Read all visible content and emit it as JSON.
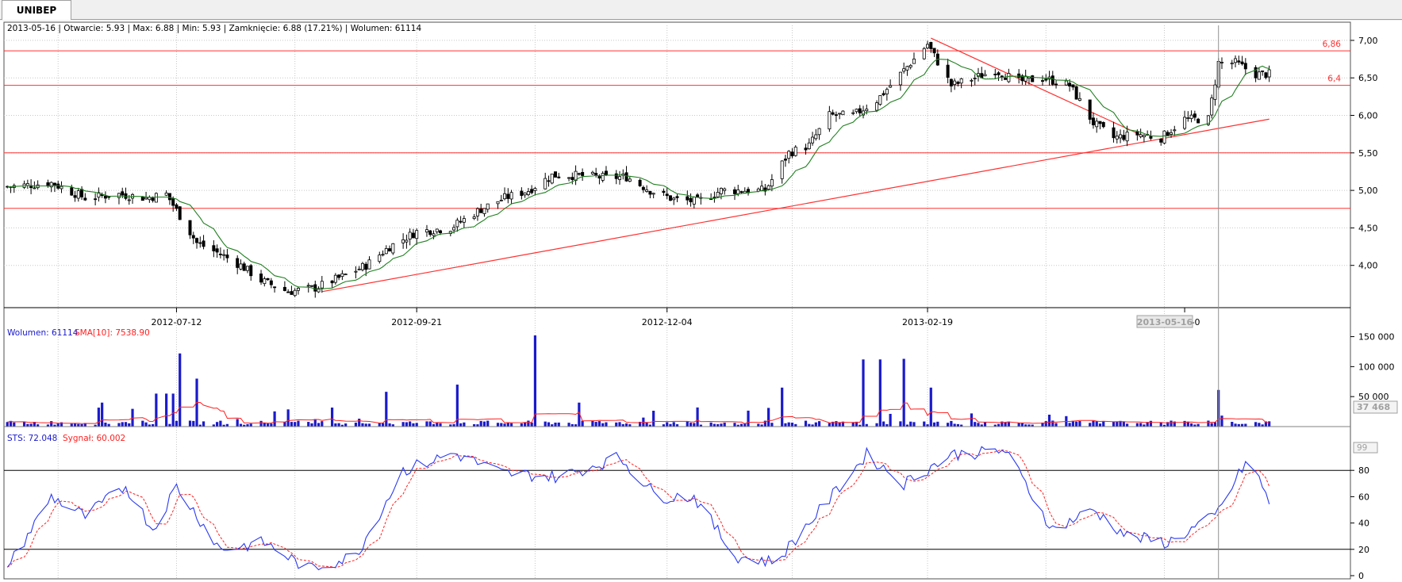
{
  "tab": {
    "label": "UNIBEP"
  },
  "info": {
    "price_line": "2013-05-16 | Otwarcie: 5.93 | Max: 6.88 | Min: 5.93 | Zamknięcie: 6.88 (17.21%)  | Wolumen: 61114"
  },
  "volume_legend": {
    "vol": "Wolumen: 61114",
    "sma": "SMA[10]: 7538.90"
  },
  "sts_legend": {
    "sts": "STS: 72.048",
    "signal": "Sygnał: 60.002"
  },
  "crosshair": {
    "date_label": "2013-05-16",
    "volume_readout": "37 468",
    "sts_readout": "99"
  },
  "colors": {
    "up": "#ffffff",
    "down": "#000000",
    "sma": "#208020",
    "hline": "#ff3030",
    "volume": "#1a1acc",
    "volsma": "#ff2020",
    "sts": "#2a3af0",
    "signal": "#ff2020",
    "grid": "#c8c8c8"
  },
  "chart_data": [
    {
      "type": "candlestick",
      "ticker": "UNIBEP",
      "x_labels": [
        "2012-07-12",
        "2012-09-21",
        "2012-12-04",
        "2013-02-19",
        "2013-0"
      ],
      "y_ticks": [
        "7,00",
        "6,50",
        "6,00",
        "5,50",
        "5,00",
        "4,50",
        "4,00"
      ],
      "ylim": [
        3.5,
        7.2
      ],
      "horizontal_levels": [
        6.86,
        6.4,
        5.5,
        4.76
      ],
      "level_labels": [
        "6,86",
        "6,4"
      ],
      "trend_lines": [
        {
          "from": [
            "2012-08-24",
            3.65
          ],
          "to": [
            "2013-05-31",
            5.95
          ]
        },
        {
          "from": [
            "2013-02-20",
            7.03
          ],
          "to": [
            "2013-04-24",
            5.72
          ]
        }
      ],
      "overlays": [
        "SMA"
      ],
      "anchors": [
        {
          "x": "2012-05-24",
          "y": 5.05
        },
        {
          "x": "2012-06-05",
          "y": 5.1
        },
        {
          "x": "2012-06-15",
          "y": 4.9
        },
        {
          "x": "2012-06-25",
          "y": 4.95
        },
        {
          "x": "2012-07-03",
          "y": 4.9
        },
        {
          "x": "2012-07-09",
          "y": 4.95
        },
        {
          "x": "2012-07-18",
          "y": 4.3
        },
        {
          "x": "2012-07-25",
          "y": 4.15
        },
        {
          "x": "2012-07-31",
          "y": 4.0
        },
        {
          "x": "2012-08-06",
          "y": 3.8
        },
        {
          "x": "2012-08-14",
          "y": 3.65
        },
        {
          "x": "2012-08-22",
          "y": 3.7
        },
        {
          "x": "2012-08-30",
          "y": 3.85
        },
        {
          "x": "2012-09-06",
          "y": 4.0
        },
        {
          "x": "2012-09-13",
          "y": 4.25
        },
        {
          "x": "2012-09-21",
          "y": 4.45
        },
        {
          "x": "2012-10-01",
          "y": 4.5
        },
        {
          "x": "2012-10-10",
          "y": 4.75
        },
        {
          "x": "2012-10-17",
          "y": 4.9
        },
        {
          "x": "2012-10-24",
          "y": 5.0
        },
        {
          "x": "2012-10-31",
          "y": 5.2
        },
        {
          "x": "2012-11-08",
          "y": 5.2
        },
        {
          "x": "2012-11-16",
          "y": 5.17
        },
        {
          "x": "2012-11-22",
          "y": 5.18
        },
        {
          "x": "2012-11-29",
          "y": 5.0
        },
        {
          "x": "2012-12-06",
          "y": 4.88
        },
        {
          "x": "2012-12-13",
          "y": 4.85
        },
        {
          "x": "2012-12-20",
          "y": 5.0
        },
        {
          "x": "2013-01-02",
          "y": 5.0
        },
        {
          "x": "2013-01-09",
          "y": 5.5
        },
        {
          "x": "2013-01-15",
          "y": 5.6
        },
        {
          "x": "2013-01-21",
          "y": 6.0
        },
        {
          "x": "2013-01-28",
          "y": 6.0
        },
        {
          "x": "2013-02-04",
          "y": 6.2
        },
        {
          "x": "2013-02-12",
          "y": 6.6
        },
        {
          "x": "2013-02-19",
          "y": 6.95
        },
        {
          "x": "2013-02-26",
          "y": 6.4
        },
        {
          "x": "2013-03-05",
          "y": 6.5
        },
        {
          "x": "2013-03-11",
          "y": 6.6
        },
        {
          "x": "2013-03-18",
          "y": 6.45
        },
        {
          "x": "2013-03-25",
          "y": 6.5
        },
        {
          "x": "2013-04-02",
          "y": 6.4
        },
        {
          "x": "2013-04-09",
          "y": 5.9
        },
        {
          "x": "2013-04-15",
          "y": 5.7
        },
        {
          "x": "2013-04-22",
          "y": 5.75
        },
        {
          "x": "2013-04-29",
          "y": 5.7
        },
        {
          "x": "2013-05-06",
          "y": 5.95
        },
        {
          "x": "2013-05-13",
          "y": 5.95
        },
        {
          "x": "2013-05-16",
          "y": 6.7
        },
        {
          "x": "2013-05-21",
          "y": 6.7
        },
        {
          "x": "2013-05-27",
          "y": 6.55
        }
      ]
    },
    {
      "type": "bar",
      "series": [
        {
          "name": "Wolumen",
          "spikes": [
            {
              "x": "2012-07-06",
              "y": 55000
            },
            {
              "x": "2012-07-09",
              "y": 55000
            },
            {
              "x": "2012-07-11",
              "y": 55000
            },
            {
              "x": "2012-07-13",
              "y": 122000
            },
            {
              "x": "2012-07-18",
              "y": 80000
            },
            {
              "x": "2012-06-20",
              "y": 40000
            },
            {
              "x": "2012-09-12",
              "y": 58000
            },
            {
              "x": "2012-10-03",
              "y": 70000
            },
            {
              "x": "2012-10-26",
              "y": 152000
            },
            {
              "x": "2012-11-08",
              "y": 40000
            },
            {
              "x": "2013-01-07",
              "y": 65000
            },
            {
              "x": "2013-01-31",
              "y": 112000
            },
            {
              "x": "2013-02-05",
              "y": 112000
            },
            {
              "x": "2013-02-12",
              "y": 113000
            },
            {
              "x": "2013-02-20",
              "y": 65000
            },
            {
              "x": "2013-05-16",
              "y": 61114
            }
          ]
        },
        {
          "name": "SMA[10]"
        }
      ],
      "y_ticks": [
        "150 000",
        "100 000",
        "50 000"
      ],
      "ylim": [
        0,
        160000
      ]
    },
    {
      "type": "line",
      "series": [
        {
          "name": "STS"
        },
        {
          "name": "Sygnał"
        }
      ],
      "y_ticks": [
        "80",
        "60",
        "40",
        "20",
        "0"
      ],
      "ylim": [
        0,
        100
      ],
      "levels": [
        80,
        20
      ],
      "anchors": [
        {
          "x": "2012-05-24",
          "y": 10
        },
        {
          "x": "2012-06-05",
          "y": 60
        },
        {
          "x": "2012-06-15",
          "y": 45
        },
        {
          "x": "2012-06-27",
          "y": 68
        },
        {
          "x": "2012-07-05",
          "y": 35
        },
        {
          "x": "2012-07-12",
          "y": 68
        },
        {
          "x": "2012-07-25",
          "y": 20
        },
        {
          "x": "2012-08-07",
          "y": 25
        },
        {
          "x": "2012-08-20",
          "y": 5
        },
        {
          "x": "2012-09-03",
          "y": 15
        },
        {
          "x": "2012-09-17",
          "y": 80
        },
        {
          "x": "2012-10-02",
          "y": 93
        },
        {
          "x": "2012-10-16",
          "y": 78
        },
        {
          "x": "2012-11-02",
          "y": 75
        },
        {
          "x": "2012-11-20",
          "y": 90
        },
        {
          "x": "2012-12-01",
          "y": 60
        },
        {
          "x": "2012-12-12",
          "y": 60
        },
        {
          "x": "2012-12-24",
          "y": 15
        },
        {
          "x": "2013-01-05",
          "y": 10
        },
        {
          "x": "2013-01-20",
          "y": 55
        },
        {
          "x": "2013-02-01",
          "y": 92
        },
        {
          "x": "2013-02-12",
          "y": 70
        },
        {
          "x": "2013-02-26",
          "y": 92
        },
        {
          "x": "2013-03-14",
          "y": 95
        },
        {
          "x": "2013-03-28",
          "y": 35
        },
        {
          "x": "2013-04-09",
          "y": 50
        },
        {
          "x": "2013-04-19",
          "y": 30
        },
        {
          "x": "2013-05-01",
          "y": 25
        },
        {
          "x": "2013-05-15",
          "y": 45
        },
        {
          "x": "2013-05-25",
          "y": 90
        },
        {
          "x": "2013-06-01",
          "y": 50
        },
        {
          "x": "2013-06-12",
          "y": 80
        },
        {
          "x": "2013-06-20",
          "y": 55
        }
      ]
    }
  ]
}
